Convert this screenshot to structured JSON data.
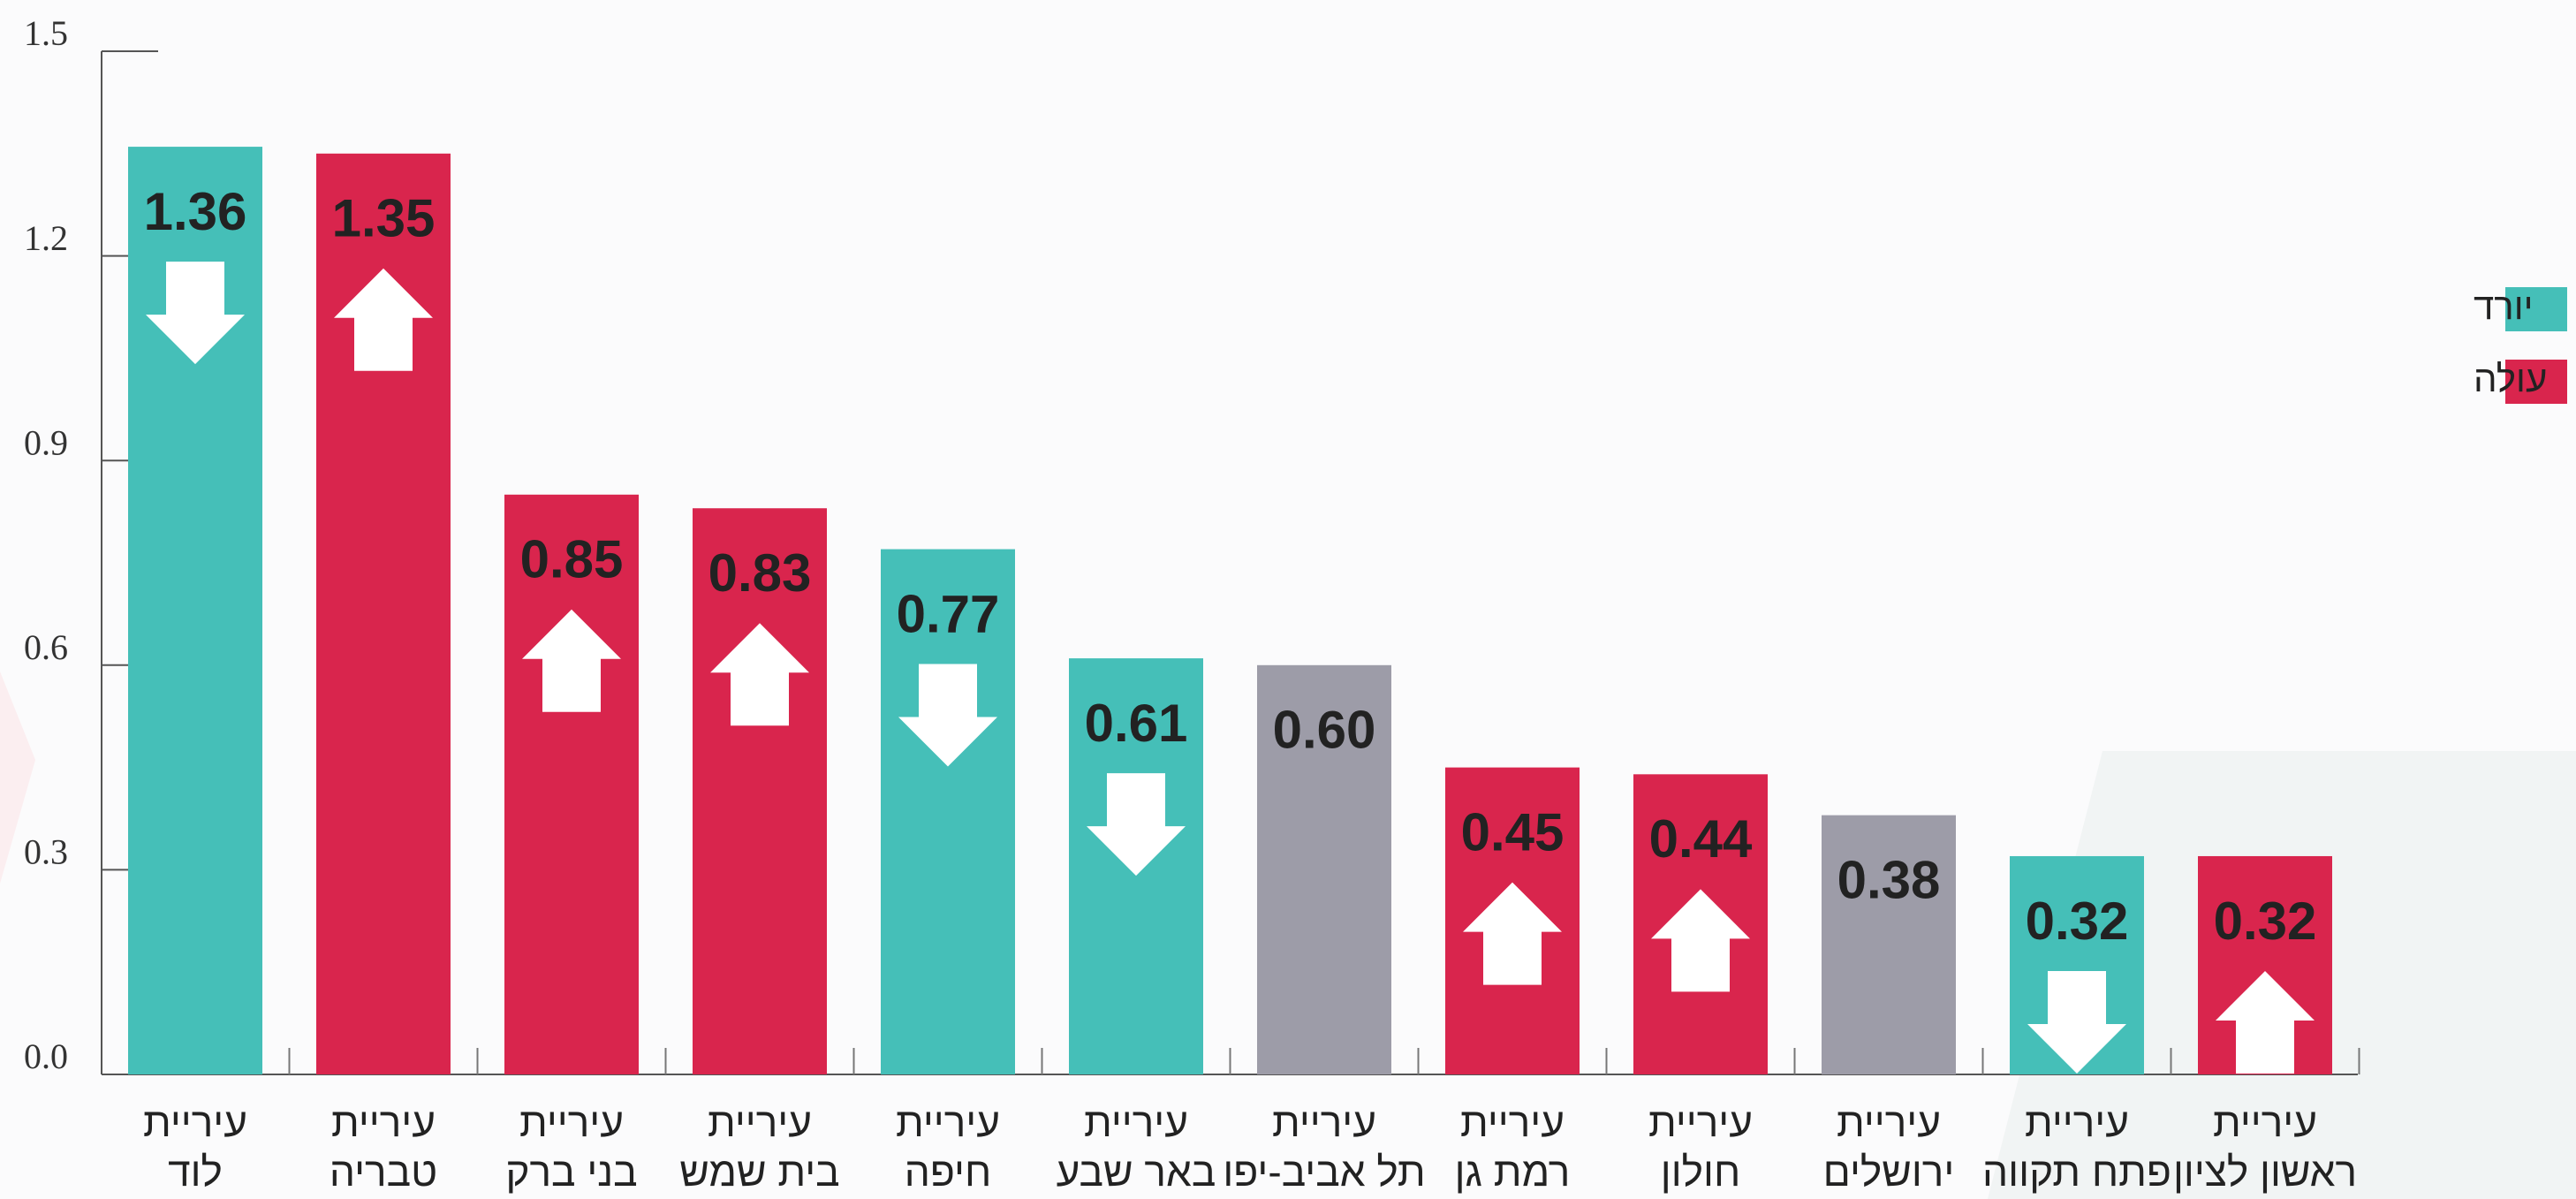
{
  "chart_data": {
    "type": "bar",
    "categories": [
      "עיריית לוד",
      "עיריית טבריה",
      "עיריית בני ברק",
      "עיריית בית שמש",
      "עיריית חיפה",
      "עיריית באר שבע",
      "עיריית תל אביב-יפו",
      "עיריית רמת גן",
      "עיריית חולון",
      "עיריית ירושלים",
      "עיריית פתח תקווה",
      "עיריית ראשון לציון"
    ],
    "values": [
      1.36,
      1.35,
      0.85,
      0.83,
      0.77,
      0.61,
      0.6,
      0.45,
      0.44,
      0.38,
      0.32,
      0.32
    ],
    "value_labels": [
      "1.36",
      "1.35",
      "0.85",
      "0.83",
      "0.77",
      "0.61",
      "0.60",
      "0.45",
      "0.44",
      "0.38",
      "0.32",
      "0.32"
    ],
    "trend": [
      "down",
      "up",
      "up",
      "up",
      "down",
      "down",
      null,
      "up",
      "up",
      null,
      "down",
      "up"
    ],
    "legend": [
      {
        "name": "יורד",
        "color": "#45bfb8",
        "trend": "down"
      },
      {
        "name": "עולה",
        "color": "#d9254d",
        "trend": "up"
      }
    ],
    "neutral_color": "#9d9ca8",
    "ylim": [
      0,
      1.5
    ],
    "yticks": [
      {
        "value": 0,
        "label": "0.0"
      },
      0.3,
      0.6,
      0.9,
      1.2,
      {
        "value": 1.5,
        "label": "1.5"
      }
    ],
    "legend_position": "right"
  }
}
